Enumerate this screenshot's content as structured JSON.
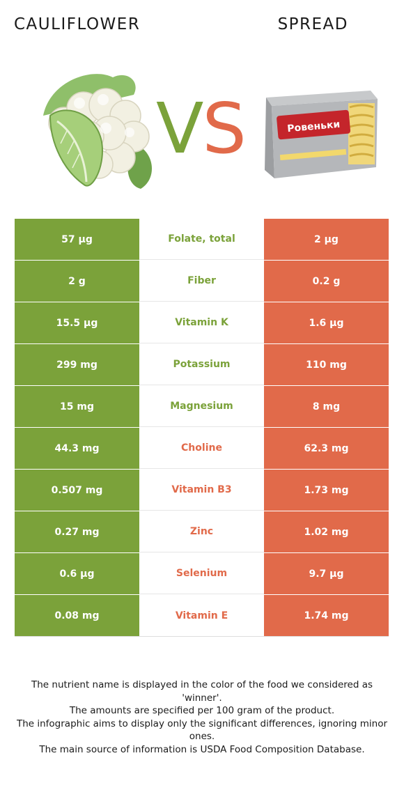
{
  "header": {
    "left_title": "CAULIFLOWER",
    "right_title": "SPREAD",
    "vs_v": "V",
    "vs_s": "S"
  },
  "colors": {
    "left": "#7ba23a",
    "right": "#e16a4a",
    "left_text_winner": "#7ba23a",
    "right_text_winner": "#e16a4a"
  },
  "images": {
    "left": "cauliflower-image",
    "right": "spread-package-image",
    "right_brand": "Ровеньки"
  },
  "rows": [
    {
      "left": "57 µg",
      "nutrient": "Folate, total",
      "right": "2 µg",
      "winner": "left"
    },
    {
      "left": "2 g",
      "nutrient": "Fiber",
      "right": "0.2 g",
      "winner": "left"
    },
    {
      "left": "15.5 µg",
      "nutrient": "Vitamin K",
      "right": "1.6 µg",
      "winner": "left"
    },
    {
      "left": "299 mg",
      "nutrient": "Potassium",
      "right": "110 mg",
      "winner": "left"
    },
    {
      "left": "15 mg",
      "nutrient": "Magnesium",
      "right": "8 mg",
      "winner": "left"
    },
    {
      "left": "44.3 mg",
      "nutrient": "Choline",
      "right": "62.3 mg",
      "winner": "right"
    },
    {
      "left": "0.507 mg",
      "nutrient": "Vitamin B3",
      "right": "1.73 mg",
      "winner": "right"
    },
    {
      "left": "0.27 mg",
      "nutrient": "Zinc",
      "right": "1.02 mg",
      "winner": "right"
    },
    {
      "left": "0.6 µg",
      "nutrient": "Selenium",
      "right": "9.7 µg",
      "winner": "right"
    },
    {
      "left": "0.08 mg",
      "nutrient": "Vitamin E",
      "right": "1.74 mg",
      "winner": "right"
    }
  ],
  "footer": {
    "line1": "The nutrient name is displayed in the color of the food we considered as 'winner'.",
    "line2": "The amounts are specified per 100 gram of the product.",
    "line3": "The infographic aims to display only the significant differences, ignoring minor ones.",
    "line4": "The main source of information is USDA Food Composition Database."
  }
}
